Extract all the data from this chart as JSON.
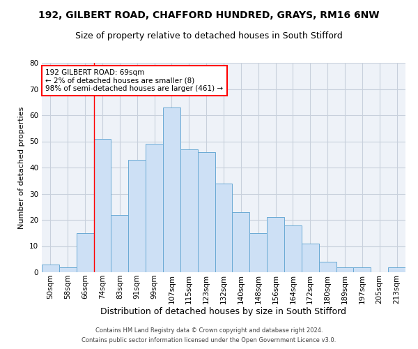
{
  "title": "192, GILBERT ROAD, CHAFFORD HUNDRED, GRAYS, RM16 6NW",
  "subtitle": "Size of property relative to detached houses in South Stifford",
  "xlabel": "Distribution of detached houses by size in South Stifford",
  "ylabel": "Number of detached properties",
  "footer1": "Contains HM Land Registry data © Crown copyright and database right 2024.",
  "footer2": "Contains public sector information licensed under the Open Government Licence v3.0.",
  "categories": [
    "50sqm",
    "58sqm",
    "66sqm",
    "74sqm",
    "83sqm",
    "91sqm",
    "99sqm",
    "107sqm",
    "115sqm",
    "123sqm",
    "132sqm",
    "140sqm",
    "148sqm",
    "156sqm",
    "164sqm",
    "172sqm",
    "180sqm",
    "189sqm",
    "197sqm",
    "205sqm",
    "213sqm"
  ],
  "values": [
    3,
    2,
    15,
    51,
    22,
    43,
    49,
    63,
    47,
    46,
    34,
    23,
    15,
    21,
    18,
    11,
    4,
    2,
    2,
    0,
    2
  ],
  "bar_color": "#cde0f5",
  "bar_edge_color": "#6aaad4",
  "annotation_text": "192 GILBERT ROAD: 69sqm\n← 2% of detached houses are smaller (8)\n98% of semi-detached houses are larger (461) →",
  "annotation_box_color": "white",
  "annotation_box_edge_color": "red",
  "red_line_x": 2.5,
  "ylim": [
    0,
    80
  ],
  "yticks": [
    0,
    10,
    20,
    30,
    40,
    50,
    60,
    70,
    80
  ],
  "grid_color": "#c8d0dc",
  "background_color": "#eef2f8",
  "title_fontsize": 10,
  "subtitle_fontsize": 9,
  "xlabel_fontsize": 9,
  "ylabel_fontsize": 8,
  "tick_fontsize": 7.5,
  "annotation_fontsize": 7.5,
  "footer_fontsize": 6
}
